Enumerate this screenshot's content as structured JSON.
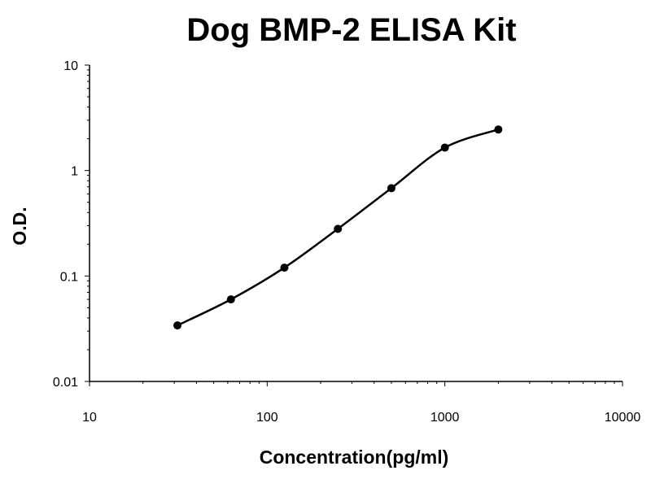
{
  "chart_data": {
    "type": "scatter",
    "title": "Dog BMP-2 ELISA Kit",
    "xlabel": "Concentration(pg/ml)",
    "ylabel": "O.D.",
    "x_scale": "log",
    "y_scale": "log",
    "xlim": [
      10,
      10000
    ],
    "ylim": [
      0.01,
      10
    ],
    "x_ticks": [
      "10",
      "100",
      "1000",
      "10000"
    ],
    "y_ticks": [
      "0.01",
      "0.1",
      "1",
      "10"
    ],
    "grid": false,
    "legend": "none",
    "fit_curve": true,
    "series": [
      {
        "x": [
          31.25,
          62.5,
          125,
          250,
          500,
          1000,
          2000
        ],
        "y": [
          0.034,
          0.06,
          0.12,
          0.28,
          0.68,
          1.65,
          2.45
        ]
      }
    ],
    "colors": {
      "curve": "#000000",
      "points": "#000000"
    }
  }
}
